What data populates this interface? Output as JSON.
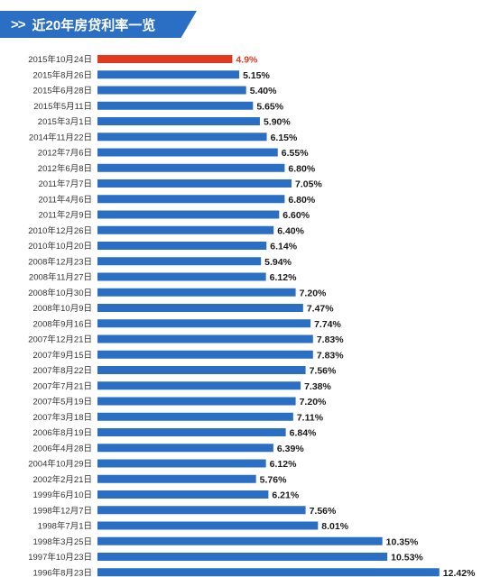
{
  "header": {
    "chevron": ">>",
    "title": "近20年房贷利率一览"
  },
  "colors": {
    "bar": "#2b6fc4",
    "highlight": "#e0391f",
    "label": "#1a1a1a",
    "date": "#333333",
    "banner": "#2b6fc4"
  },
  "chart_data": {
    "type": "bar",
    "orientation": "horizontal",
    "title": "近20年房贷利率一览",
    "xlabel": "",
    "ylabel": "",
    "xlim": [
      0,
      13
    ],
    "grid": false,
    "legend": "none",
    "categories": [
      "2015年10月24日",
      "2015年8月26日",
      "2015年6月28日",
      "2015年5月11日",
      "2015年3月1日",
      "2014年11月22日",
      "2012年7月6日",
      "2012年6月8日",
      "2011年7月7日",
      "2011年4月6日",
      "2011年2月9日",
      "2010年12月26日",
      "2010年10月20日",
      "2008年12月23日",
      "2008年11月27日",
      "2008年10月30日",
      "2008年10月9日",
      "2008年9月16日",
      "2007年12月21日",
      "2007年9月15日",
      "2007年8月22日",
      "2007年7月21日",
      "2007年5月19日",
      "2007年3月18日",
      "2006年8月19日",
      "2006年4月28日",
      "2004年10月29日",
      "2002年2月21日",
      "1999年6月10日",
      "1998年12月7日",
      "1998年7月1日",
      "1998年3月25日",
      "1997年10月23日",
      "1996年8月23日"
    ],
    "values": [
      4.9,
      5.15,
      5.4,
      5.65,
      5.9,
      6.15,
      6.55,
      6.8,
      7.05,
      6.8,
      6.6,
      6.4,
      6.14,
      5.94,
      6.12,
      7.2,
      7.47,
      7.74,
      7.83,
      7.83,
      7.56,
      7.38,
      7.2,
      7.11,
      6.84,
      6.39,
      6.12,
      5.76,
      6.21,
      7.56,
      8.01,
      10.35,
      10.53,
      12.42
    ],
    "labels": [
      "4.9%",
      "5.15%",
      "5.40%",
      "5.65%",
      "5.90%",
      "6.15%",
      "6.55%",
      "6.80%",
      "7.05%",
      "6.80%",
      "6.60%",
      "6.40%",
      "6.14%",
      "5.94%",
      "6.12%",
      "7.20%",
      "7.47%",
      "7.74%",
      "7.83%",
      "7.83%",
      "7.56%",
      "7.38%",
      "7.20%",
      "7.11%",
      "6.84%",
      "6.39%",
      "6.12%",
      "5.76%",
      "6.21%",
      "7.56%",
      "8.01%",
      "10.35%",
      "10.53%",
      "12.42%"
    ],
    "highlight_index": 0
  }
}
